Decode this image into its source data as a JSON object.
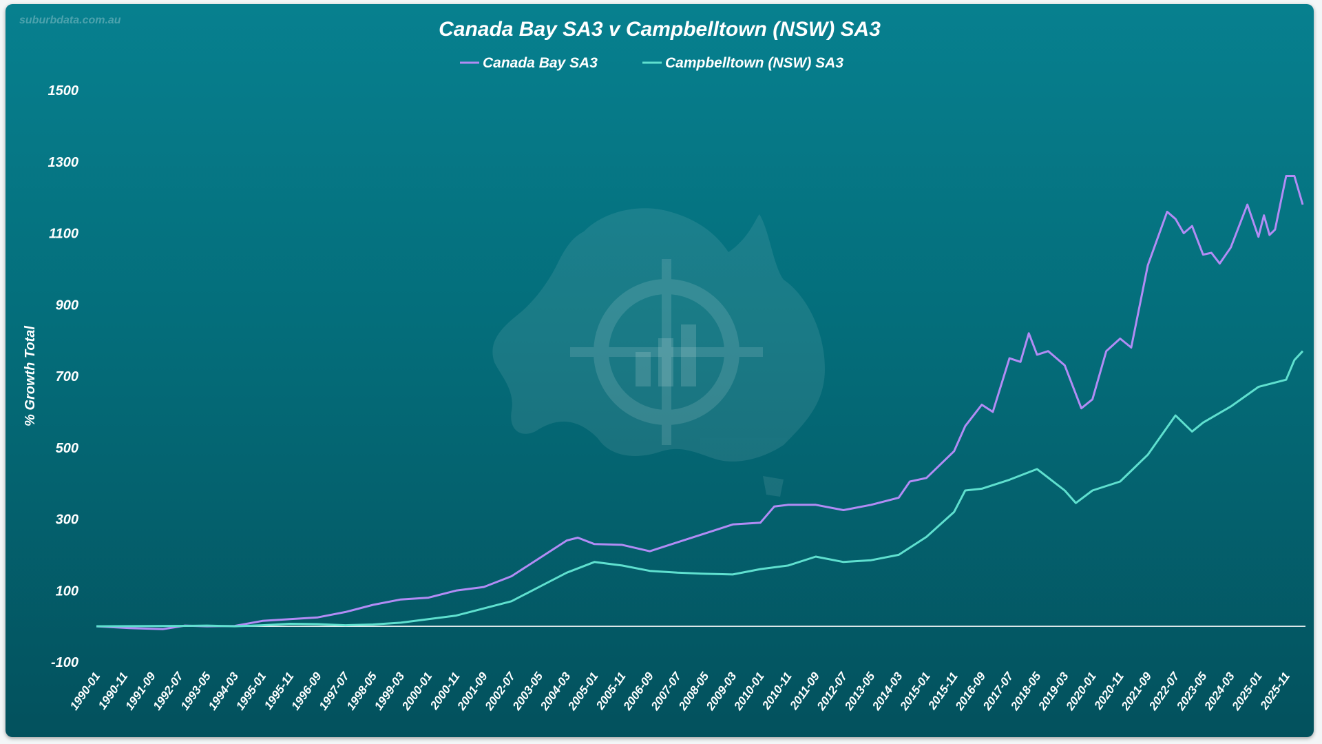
{
  "watermark": "suburbdata.com.au",
  "colors": {
    "background_top": "#07808f",
    "background_bottom": "#03515d",
    "series_canada_bay": "#b28cf5",
    "series_campbelltown": "#5fe0cf",
    "text": "#ffffff"
  },
  "chart_data": {
    "type": "line",
    "title": "Canada Bay SA3 v Campbelltown (NSW) SA3",
    "ylabel": "% Growth Total",
    "xlabel": "",
    "ylim": [
      -100,
      1500
    ],
    "y_ticks": [
      -100,
      100,
      300,
      500,
      700,
      900,
      1100,
      1300,
      1500
    ],
    "x_tick_labels": [
      "1990-01",
      "1990-11",
      "1991-09",
      "1992-07",
      "1993-05",
      "1994-03",
      "1995-01",
      "1995-11",
      "1996-09",
      "1997-07",
      "1998-05",
      "1999-03",
      "2000-01",
      "2000-11",
      "2001-09",
      "2002-07",
      "2003-05",
      "2004-03",
      "2005-01",
      "2005-11",
      "2006-09",
      "2007-07",
      "2008-05",
      "2009-03",
      "2010-01",
      "2010-11",
      "2011-09",
      "2012-07",
      "2013-05",
      "2014-03",
      "2015-01",
      "2015-11",
      "2016-09",
      "2017-07",
      "2018-05",
      "2019-03",
      "2020-01",
      "2020-11",
      "2021-09",
      "2022-07",
      "2023-05",
      "2024-03",
      "2025-01",
      "2025-11"
    ],
    "legend_position": "top-center",
    "grid": false,
    "series": [
      {
        "name": "Canada Bay SA3",
        "color": "#b28cf5",
        "points": [
          [
            "1990-01",
            0
          ],
          [
            "1991-01",
            -5
          ],
          [
            "1992-01",
            -8
          ],
          [
            "1992-09",
            2
          ],
          [
            "1993-05",
            0
          ],
          [
            "1994-03",
            1
          ],
          [
            "1995-01",
            15
          ],
          [
            "1995-11",
            20
          ],
          [
            "1996-09",
            25
          ],
          [
            "1997-07",
            40
          ],
          [
            "1998-05",
            60
          ],
          [
            "1999-03",
            75
          ],
          [
            "2000-01",
            80
          ],
          [
            "2000-11",
            100
          ],
          [
            "2001-09",
            110
          ],
          [
            "2002-07",
            140
          ],
          [
            "2003-05",
            190
          ],
          [
            "2004-03",
            240
          ],
          [
            "2004-07",
            248
          ],
          [
            "2005-01",
            230
          ],
          [
            "2005-11",
            228
          ],
          [
            "2006-09",
            210
          ],
          [
            "2007-07",
            235
          ],
          [
            "2008-05",
            260
          ],
          [
            "2009-03",
            285
          ],
          [
            "2010-01",
            290
          ],
          [
            "2010-06",
            335
          ],
          [
            "2010-11",
            340
          ],
          [
            "2011-09",
            340
          ],
          [
            "2012-07",
            325
          ],
          [
            "2013-05",
            340
          ],
          [
            "2014-03",
            360
          ],
          [
            "2014-07",
            405
          ],
          [
            "2015-01",
            415
          ],
          [
            "2015-11",
            490
          ],
          [
            "2016-03",
            560
          ],
          [
            "2016-09",
            620
          ],
          [
            "2017-01",
            600
          ],
          [
            "2017-07",
            750
          ],
          [
            "2017-11",
            740
          ],
          [
            "2018-02",
            820
          ],
          [
            "2018-05",
            760
          ],
          [
            "2018-09",
            770
          ],
          [
            "2019-03",
            730
          ],
          [
            "2019-09",
            610
          ],
          [
            "2020-01",
            635
          ],
          [
            "2020-06",
            770
          ],
          [
            "2020-11",
            805
          ],
          [
            "2021-03",
            780
          ],
          [
            "2021-09",
            1010
          ],
          [
            "2022-04",
            1160
          ],
          [
            "2022-07",
            1140
          ],
          [
            "2022-10",
            1100
          ],
          [
            "2023-01",
            1120
          ],
          [
            "2023-05",
            1040
          ],
          [
            "2023-08",
            1045
          ],
          [
            "2023-11",
            1015
          ],
          [
            "2024-03",
            1060
          ],
          [
            "2024-09",
            1180
          ],
          [
            "2025-01",
            1090
          ],
          [
            "2025-03",
            1150
          ],
          [
            "2025-05",
            1095
          ],
          [
            "2025-07",
            1110
          ],
          [
            "2025-11",
            1260
          ],
          [
            "2026-02",
            1260
          ],
          [
            "2026-05",
            1180
          ]
        ]
      },
      {
        "name": "Campbelltown (NSW) SA3",
        "color": "#5fe0cf",
        "points": [
          [
            "1990-01",
            0
          ],
          [
            "1992-07",
            1
          ],
          [
            "1993-05",
            2
          ],
          [
            "1994-03",
            0
          ],
          [
            "1995-01",
            3
          ],
          [
            "1995-11",
            7
          ],
          [
            "1996-09",
            6
          ],
          [
            "1997-07",
            3
          ],
          [
            "1998-05",
            5
          ],
          [
            "1999-03",
            10
          ],
          [
            "2000-01",
            20
          ],
          [
            "2000-11",
            30
          ],
          [
            "2001-09",
            50
          ],
          [
            "2002-07",
            70
          ],
          [
            "2003-05",
            110
          ],
          [
            "2004-03",
            150
          ],
          [
            "2005-01",
            180
          ],
          [
            "2005-11",
            170
          ],
          [
            "2006-09",
            155
          ],
          [
            "2007-07",
            150
          ],
          [
            "2008-05",
            147
          ],
          [
            "2009-03",
            145
          ],
          [
            "2010-01",
            160
          ],
          [
            "2010-11",
            170
          ],
          [
            "2011-09",
            195
          ],
          [
            "2012-07",
            180
          ],
          [
            "2013-05",
            185
          ],
          [
            "2014-03",
            200
          ],
          [
            "2015-01",
            250
          ],
          [
            "2015-11",
            320
          ],
          [
            "2016-03",
            380
          ],
          [
            "2016-09",
            385
          ],
          [
            "2017-07",
            410
          ],
          [
            "2018-05",
            440
          ],
          [
            "2019-03",
            380
          ],
          [
            "2019-07",
            345
          ],
          [
            "2020-01",
            380
          ],
          [
            "2020-11",
            405
          ],
          [
            "2021-09",
            480
          ],
          [
            "2022-07",
            590
          ],
          [
            "2023-01",
            545
          ],
          [
            "2023-05",
            570
          ],
          [
            "2024-03",
            615
          ],
          [
            "2025-01",
            670
          ],
          [
            "2025-11",
            690
          ],
          [
            "2026-02",
            745
          ],
          [
            "2026-05",
            770
          ]
        ]
      }
    ]
  }
}
